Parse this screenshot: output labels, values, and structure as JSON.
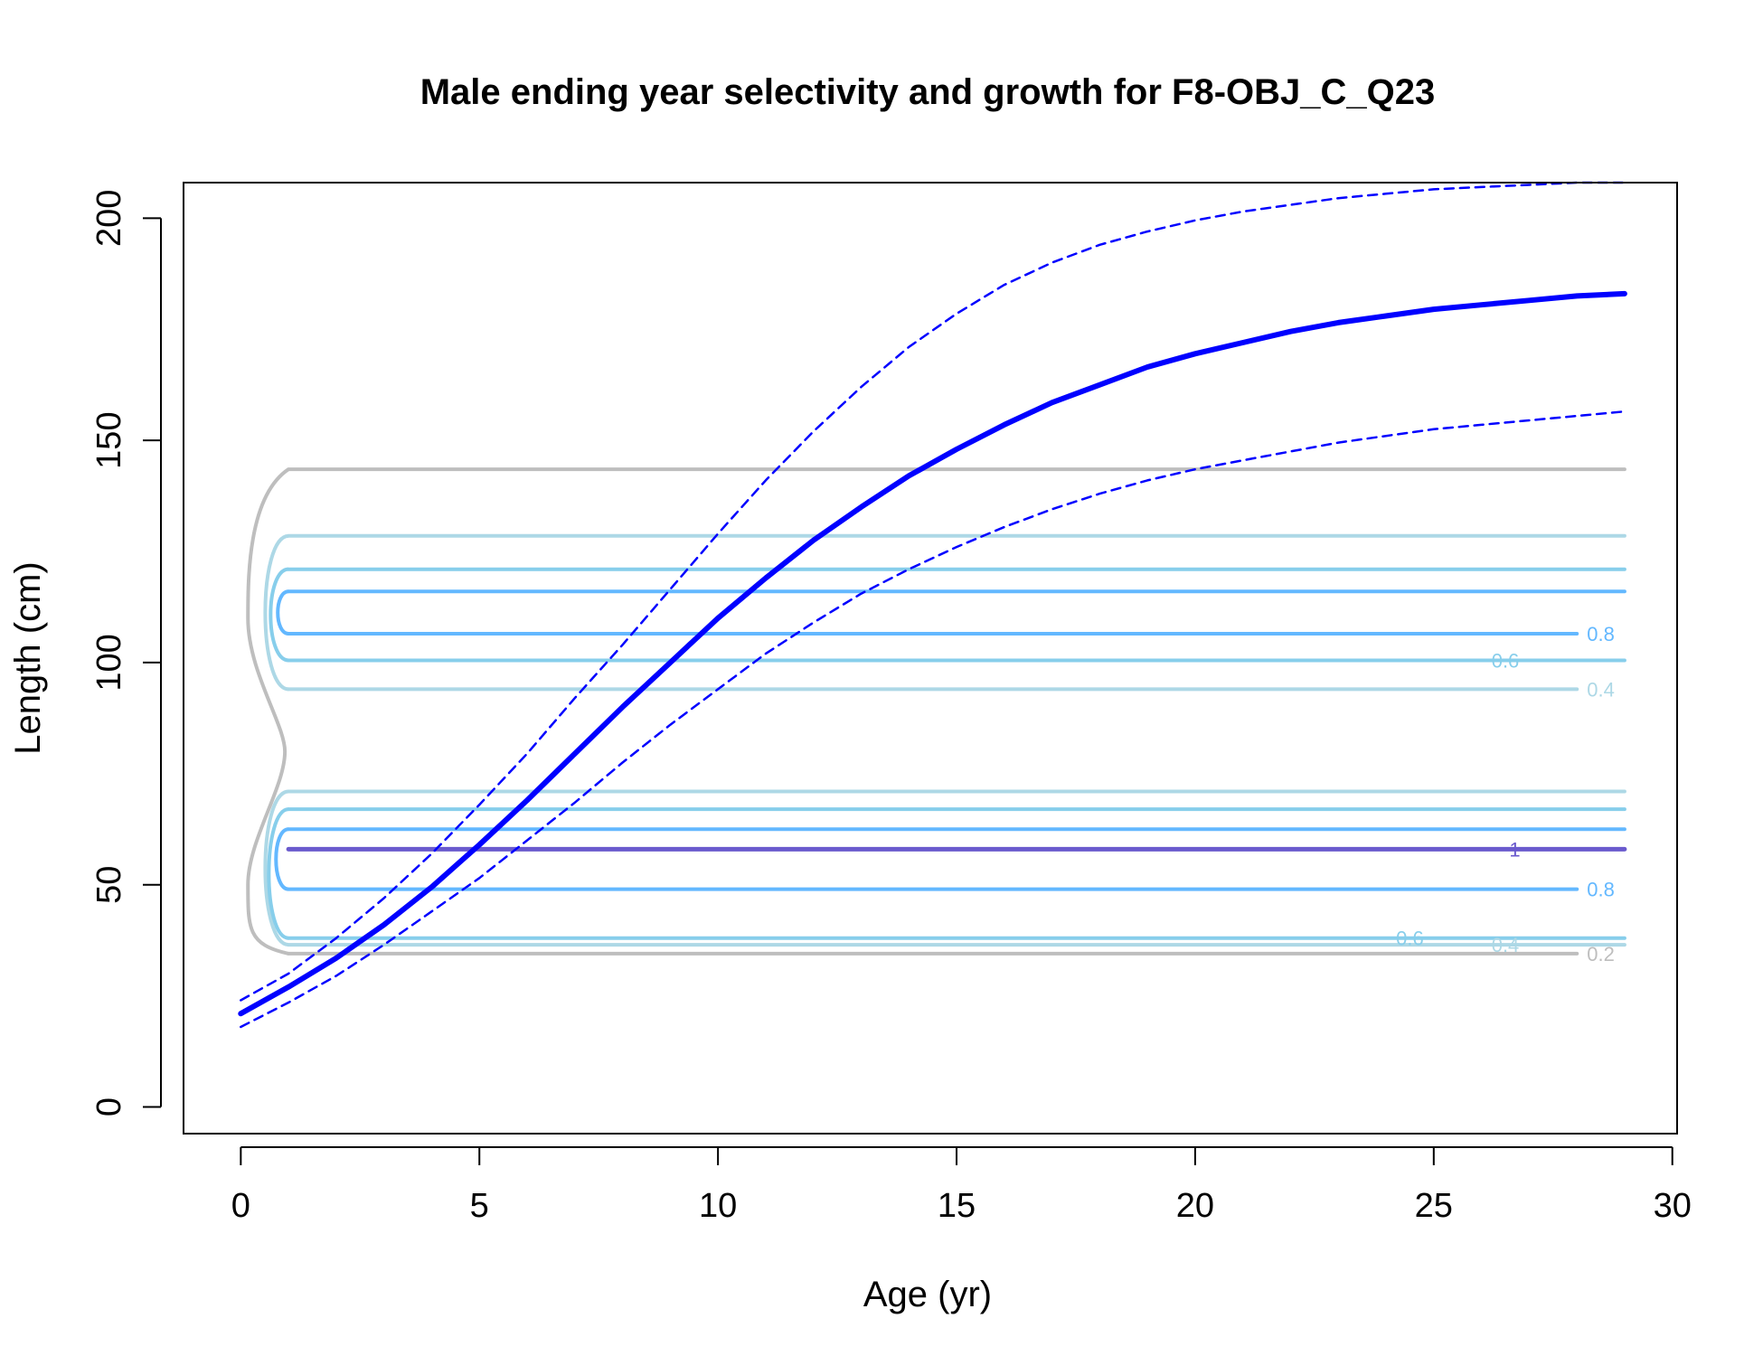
{
  "chart_data": {
    "type": "line",
    "title": "Male ending year selectivity and growth for F8-OBJ_C_Q23",
    "xlabel": "Age (yr)",
    "ylabel": "Length (cm)",
    "xlim": [
      -1.2,
      30.1
    ],
    "ylim": [
      -6,
      208
    ],
    "xticks": [
      0,
      5,
      10,
      15,
      20,
      25,
      30
    ],
    "yticks": [
      0,
      50,
      100,
      150,
      200
    ],
    "x_tick_labels": [
      "0",
      "5",
      "10",
      "15",
      "20",
      "25",
      "30"
    ],
    "y_tick_labels": [
      "0",
      "50",
      "100",
      "150",
      "200"
    ],
    "grid": false,
    "legend": "none",
    "series": [
      {
        "role": "mean",
        "color": "#0000ff",
        "style": "solid-thick",
        "x": [
          0,
          1,
          2,
          3,
          4,
          5,
          6,
          7,
          8,
          9,
          10,
          11,
          12,
          13,
          14,
          15,
          16,
          17,
          18,
          19,
          20,
          21,
          22,
          23,
          24,
          25,
          26,
          27,
          28,
          29
        ],
        "y": [
          21,
          27,
          33.5,
          41,
          49.5,
          59,
          69,
          79.5,
          90,
          100,
          110,
          119,
          127.5,
          135,
          142,
          148,
          153.5,
          158.5,
          162.5,
          166.5,
          169.5,
          172,
          174.5,
          176.5,
          178,
          179.5,
          180.5,
          181.5,
          182.5,
          183
        ]
      },
      {
        "role": "upper",
        "color": "#0000ff",
        "style": "dashed",
        "x": [
          0,
          1,
          2,
          3,
          4,
          5,
          6,
          7,
          8,
          9,
          10,
          11,
          12,
          13,
          14,
          15,
          16,
          17,
          18,
          19,
          20,
          21,
          22,
          23,
          24,
          25,
          26,
          27,
          28,
          29
        ],
        "y": [
          24,
          30,
          38,
          47,
          57,
          68,
          79.5,
          92,
          104,
          116.5,
          129,
          141,
          152,
          162,
          171,
          178.5,
          185,
          190,
          194,
          197,
          199.5,
          201.5,
          203,
          204.5,
          205.5,
          206.5,
          207,
          207.5,
          208,
          208
        ]
      },
      {
        "role": "lower",
        "color": "#0000ff",
        "style": "dashed",
        "x": [
          0,
          1,
          2,
          3,
          4,
          5,
          6,
          7,
          8,
          9,
          10,
          11,
          12,
          13,
          14,
          15,
          16,
          17,
          18,
          19,
          20,
          21,
          22,
          23,
          24,
          25,
          26,
          27,
          28,
          29
        ],
        "y": [
          18,
          23.5,
          29.5,
          36.5,
          44,
          51.5,
          60,
          68.5,
          77.5,
          86,
          94,
          102,
          109,
          115.5,
          121,
          126,
          130.5,
          134.5,
          138,
          141,
          143.5,
          145.5,
          147.5,
          149.5,
          151,
          152.5,
          153.5,
          154.5,
          155.5,
          156.5
        ]
      }
    ],
    "contours": [
      {
        "level": "0.2",
        "color": "#bebebe",
        "y": 143.5,
        "x_end": 29,
        "width": 4
      },
      {
        "level": "0.4",
        "color": "#add8e6",
        "y": 128.5,
        "x_end": 29,
        "width": 4
      },
      {
        "level": "0.6",
        "color": "#87ceeb",
        "y": 121,
        "x_end": 29,
        "width": 4
      },
      {
        "level": "0.8",
        "color": "#63b8ff",
        "y": 116,
        "x_end": 29,
        "width": 4
      },
      {
        "level": "0.8",
        "color": "#63b8ff",
        "y": 106.5,
        "x_end": 28,
        "width": 4
      },
      {
        "level": "0.6",
        "color": "#87ceeb",
        "y": 100.5,
        "x_end": 29,
        "width": 4
      },
      {
        "level": "0.4",
        "color": "#add8e6",
        "y": 94,
        "x_end": 28,
        "width": 4
      },
      {
        "level": "0.4",
        "color": "#add8e6",
        "y": 71,
        "x_end": 29,
        "width": 4
      },
      {
        "level": "0.6",
        "color": "#87ceeb",
        "y": 67,
        "x_end": 29,
        "width": 4
      },
      {
        "level": "0.8",
        "color": "#63b8ff",
        "y": 62.5,
        "x_end": 29,
        "width": 4
      },
      {
        "level": "1",
        "color": "#6a5acd",
        "y": 58,
        "x_end": 29,
        "width": 5
      },
      {
        "level": "0.8",
        "color": "#63b8ff",
        "y": 49,
        "x_end": 28,
        "width": 4
      },
      {
        "level": "0.6",
        "color": "#87ceeb",
        "y": 38,
        "x_end": 29,
        "width": 4
      },
      {
        "level": "0.4",
        "color": "#add8e6",
        "y": 36.5,
        "x_end": 29,
        "width": 4
      },
      {
        "level": "0.2",
        "color": "#bebebe",
        "y": 34.5,
        "x_end": 28,
        "width": 4
      }
    ],
    "contour_labels": [
      {
        "text": "0.8",
        "color": "#63b8ff",
        "x": 28.5,
        "y": 106.5
      },
      {
        "text": "0.6",
        "color": "#87ceeb",
        "x": 26.5,
        "y": 100.5
      },
      {
        "text": "0.4",
        "color": "#add8e6",
        "x": 28.5,
        "y": 94
      },
      {
        "text": "1",
        "color": "#6a5acd",
        "x": 26.7,
        "y": 58
      },
      {
        "text": "0.8",
        "color": "#63b8ff",
        "x": 28.5,
        "y": 49
      },
      {
        "text": "0.6",
        "color": "#87ceeb",
        "x": 24.5,
        "y": 38
      },
      {
        "text": "0.4",
        "color": "#add8e6",
        "x": 26.5,
        "y": 36.5
      },
      {
        "text": "0.2",
        "color": "#bebebe",
        "x": 28.5,
        "y": 34.5
      }
    ]
  }
}
